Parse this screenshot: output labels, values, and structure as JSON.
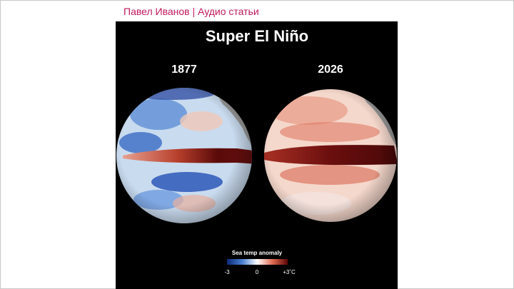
{
  "header": {
    "title": "Павел Иванов | Аудио статьи"
  },
  "figure": {
    "title": "Super El Niño",
    "panels": [
      {
        "label": "1877"
      },
      {
        "label": "2026"
      }
    ],
    "legend": {
      "title": "Sea temp anomaly",
      "ticks": [
        "-3",
        "0",
        "+3˚C"
      ]
    }
  }
}
